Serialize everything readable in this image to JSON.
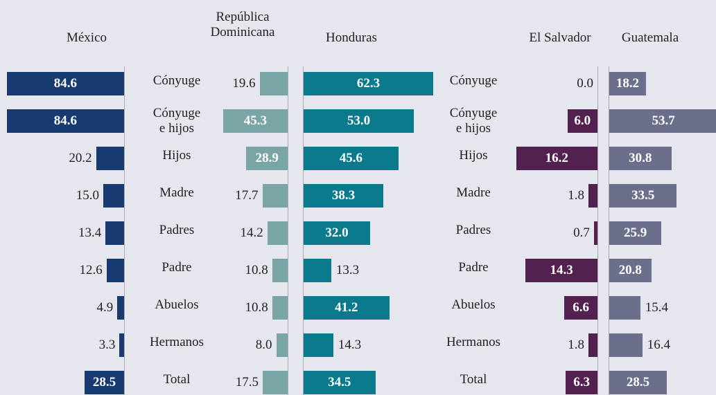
{
  "chart_data": [
    {
      "type": "bar",
      "title": "México",
      "color": "#173a70",
      "xlim": [
        0,
        85
      ],
      "categories": [
        "Cónyuge",
        "Cónyuge\ne hijos",
        "Hijos",
        "Madre",
        "Padres",
        "Padre",
        "Abuelos",
        "Hermanos",
        "Total"
      ],
      "values": [
        84.6,
        84.6,
        20.2,
        15.0,
        13.4,
        12.6,
        4.9,
        3.3,
        28.5
      ],
      "value_labels": [
        "84.6",
        "84.6",
        "20.2",
        "15.0",
        "13.4",
        "12.6",
        "4.9",
        "3.3",
        "28.5"
      ]
    },
    {
      "type": "bar",
      "title": "República\nDominicana",
      "color": "#7aa5a6",
      "xlim": [
        0,
        50
      ],
      "values": [
        19.6,
        45.3,
        28.9,
        17.7,
        14.2,
        10.8,
        10.8,
        8.0,
        17.5
      ],
      "value_labels": [
        "19.6",
        "45.3",
        "28.9",
        "17.7",
        "14.2",
        "10.8",
        "10.8",
        "8.0",
        "17.5"
      ]
    },
    {
      "type": "bar",
      "title": "Honduras",
      "color": "#0a7a8c",
      "xlim": [
        0,
        65
      ],
      "values": [
        62.3,
        53.0,
        45.6,
        38.3,
        32.0,
        13.3,
        41.2,
        14.3,
        34.5
      ],
      "value_labels": [
        "62.3",
        "53.0",
        "45.6",
        "38.3",
        "32.0",
        "13.3",
        "41.2",
        "14.3",
        "34.5"
      ]
    },
    {
      "type": "bar",
      "title": "El Salvador",
      "color": "#53214f",
      "xlim": [
        0,
        20
      ],
      "categories": [
        "Cónyuge",
        "Cónyuge\ne hijos",
        "Hijos",
        "Madre",
        "Padres",
        "Padre",
        "Abuelos",
        "Hermanos",
        "Total"
      ],
      "values": [
        0.0,
        6.0,
        16.2,
        1.8,
        0.7,
        14.3,
        6.6,
        1.8,
        6.3
      ],
      "value_labels": [
        "0.0",
        "6.0",
        "16.2",
        "1.8",
        "0.7",
        "14.3",
        "6.6",
        "1.8",
        "6.3"
      ]
    },
    {
      "type": "bar",
      "title": "Guatemala",
      "color": "#6b6f8c",
      "xlim": [
        0,
        55
      ],
      "values": [
        18.2,
        53.7,
        30.8,
        33.5,
        25.9,
        20.8,
        15.4,
        16.4,
        28.5
      ],
      "value_labels": [
        "18.2",
        "53.7",
        "30.8",
        "33.5",
        "25.9",
        "20.8",
        "15.4",
        "16.4",
        "28.5"
      ]
    }
  ]
}
